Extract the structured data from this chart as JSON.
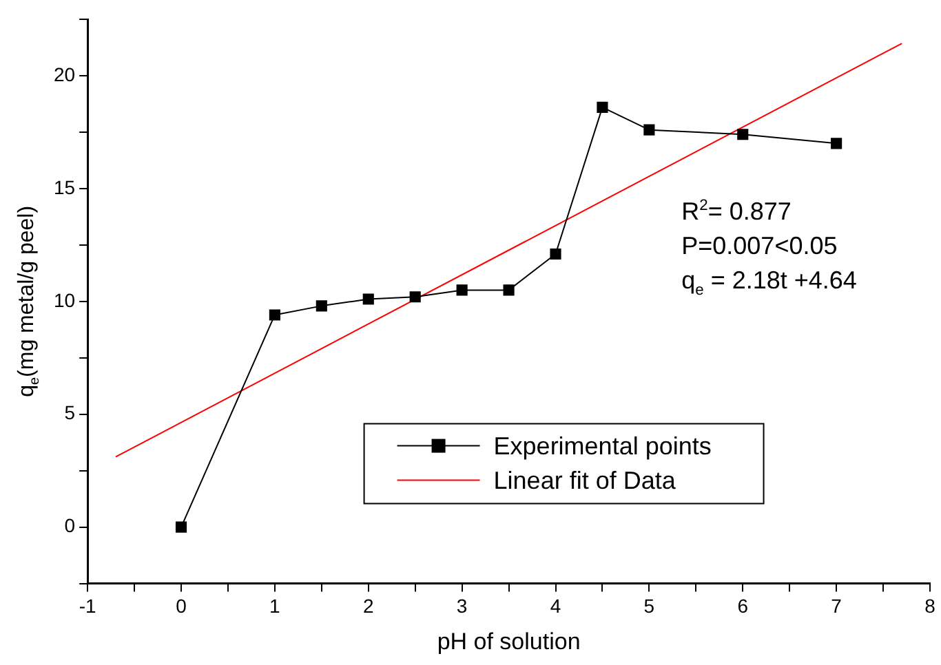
{
  "chart_data": {
    "type": "line",
    "xlabel": "pH of solution",
    "ylabel": "q$_{e}$(mg metal/g peel)",
    "xlim": [
      -1,
      8
    ],
    "xticks": [
      -1,
      {
        "value": -0.5,
        "label": null
      },
      0,
      {
        "value": 0.5,
        "label": null
      },
      1,
      {
        "value": 1.5,
        "label": null
      },
      2,
      {
        "value": 2.5,
        "label": null
      },
      3,
      {
        "value": 3.5,
        "label": null
      },
      4,
      {
        "value": 4.5,
        "label": null
      },
      5,
      {
        "value": 5.5,
        "label": null
      },
      6,
      {
        "value": 6.5,
        "label": null
      },
      7,
      {
        "value": 7.5,
        "label": null
      },
      8
    ],
    "ylim": [
      -2.5,
      22.5
    ],
    "yticks": [
      {
        "value": -2.5,
        "label": null
      },
      0,
      {
        "value": 2.5,
        "label": null
      },
      5,
      {
        "value": 7.5,
        "label": null
      },
      10,
      {
        "value": 12.5,
        "label": null
      },
      15,
      {
        "value": 17.5,
        "label": null
      },
      20,
      {
        "value": 22.5,
        "label": null
      }
    ],
    "grid": false,
    "legend": "bottom",
    "series": [
      {
        "name": "Experimental points",
        "color": "#000000",
        "marker": "square",
        "x": [
          0,
          1,
          1.5,
          2,
          2.5,
          3,
          3.5,
          4,
          4.5,
          5,
          6,
          7
        ],
        "values": [
          0,
          9.4,
          9.8,
          10.1,
          10.2,
          10.5,
          10.5,
          12.1,
          18.6,
          17.6,
          17.4,
          17.0
        ]
      },
      {
        "name": "Linear fit of Data",
        "color": "#ff0000",
        "marker": "none",
        "x": [
          -0.7,
          7.7
        ],
        "values": [
          3.11,
          21.43
        ]
      }
    ],
    "annotations": [
      "R$^{2}$= 0.877",
      "P=0.007<0.05",
      "q$_{e}$ = 2.18t +4.64"
    ]
  }
}
